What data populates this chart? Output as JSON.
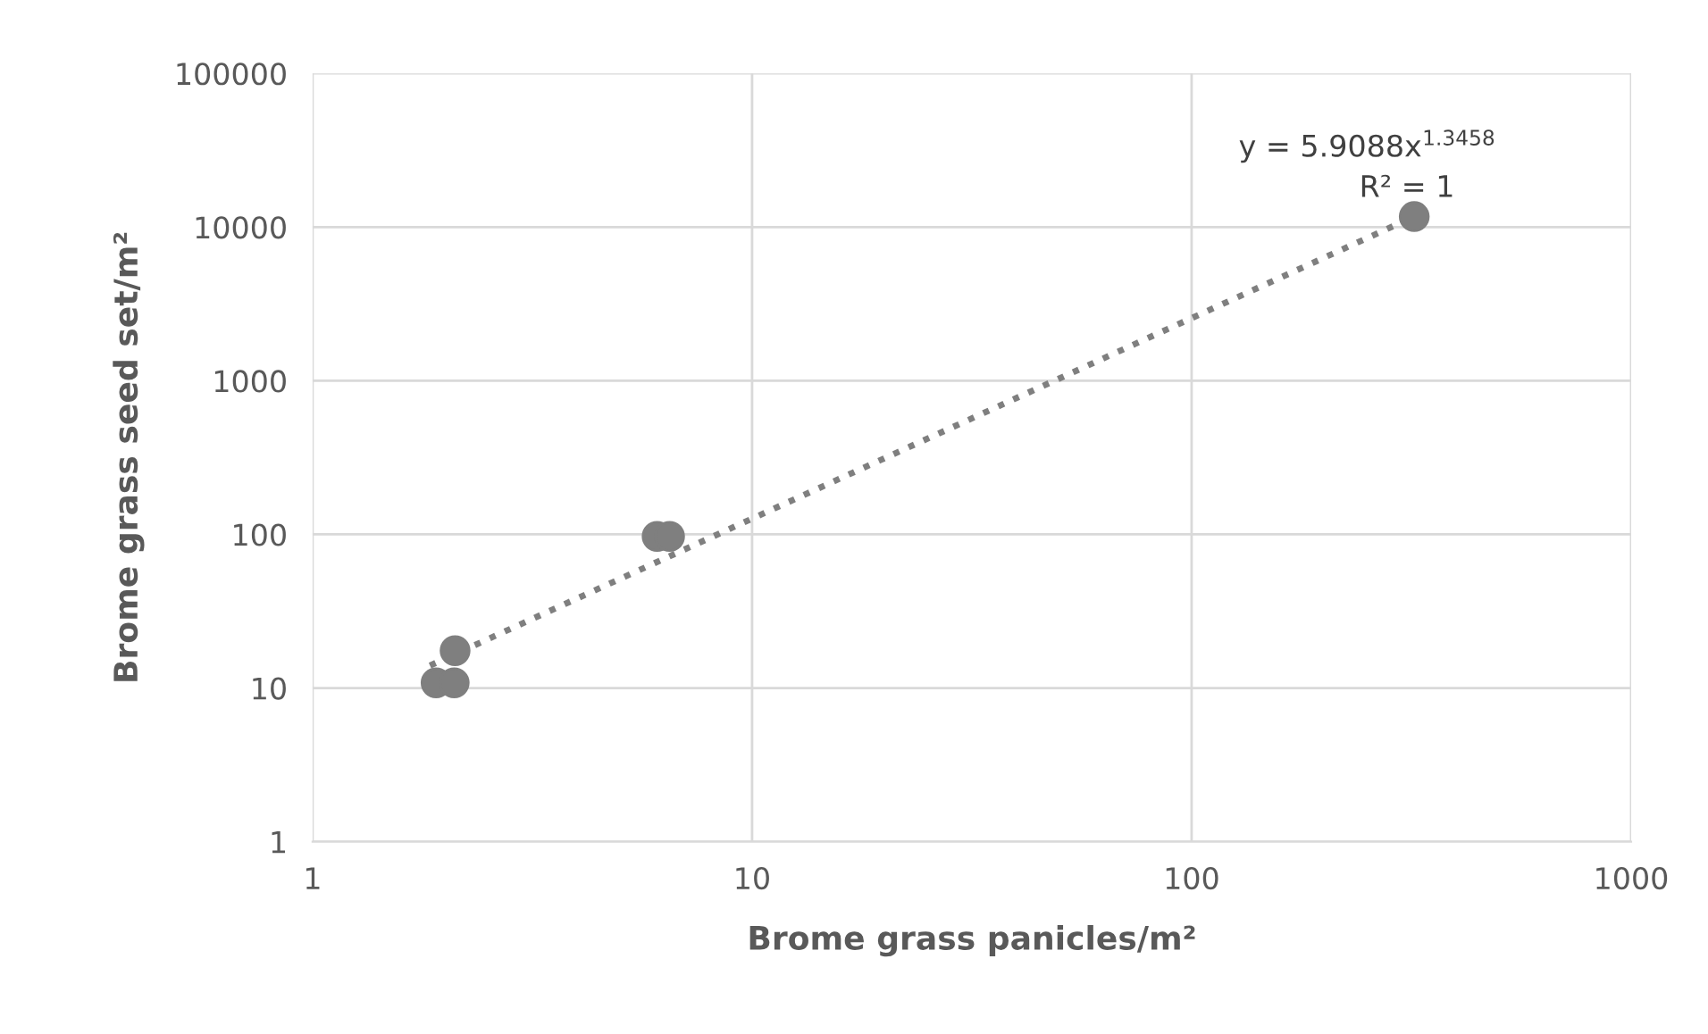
{
  "chart_data": {
    "type": "scatter",
    "xlabel": "Brome grass panicles/m²",
    "ylabel": "Brome grass seed set/m²",
    "log": "xy",
    "xlim": [
      1,
      1000
    ],
    "ylim": [
      1,
      100000
    ],
    "xticks": [
      1,
      10,
      100,
      1000
    ],
    "yticks": [
      1,
      10,
      100,
      1000,
      10000,
      100000
    ],
    "grid": true,
    "series": [
      {
        "marker": "circle",
        "color": "#7f7f7f",
        "x": [
          1.91,
          2.1,
          2.11,
          6.08,
          6.49,
          321
        ],
        "values": [
          10.8,
          10.8,
          17.5,
          97,
          97,
          11700
        ]
      },
      {
        "type": "line",
        "marker": "none",
        "color": "#7f7f7f",
        "line_style": "dotted",
        "x": [
          1.85,
          321
        ],
        "values": [
          14,
          11700
        ]
      }
    ],
    "annotations": [
      "y = 5.9088x$^{1.3458}$",
      "R² = 1"
    ]
  }
}
